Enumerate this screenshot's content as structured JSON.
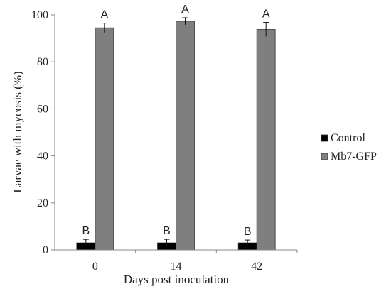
{
  "chart_data": {
    "type": "bar",
    "title": "",
    "xlabel": "Days post inoculation",
    "ylabel": "Larvae with mycosis (%)",
    "categories": [
      "0",
      "14",
      "42"
    ],
    "ylim": [
      0,
      100
    ],
    "yticks": [
      0,
      20,
      40,
      60,
      80,
      100
    ],
    "grid": false,
    "legend_position": "right",
    "series": [
      {
        "name": "Control",
        "color": "#000000",
        "values": [
          3,
          3,
          3
        ],
        "errors": [
          1.5,
          1.5,
          1.2
        ],
        "labels": [
          "B",
          "B",
          "B"
        ]
      },
      {
        "name": "Mb7-GFP",
        "color": "#7f7f7f",
        "values": [
          94.5,
          97.3,
          93.8
        ],
        "errors": [
          2.0,
          1.5,
          3.0
        ],
        "labels": [
          "A",
          "A",
          "A"
        ]
      }
    ]
  }
}
